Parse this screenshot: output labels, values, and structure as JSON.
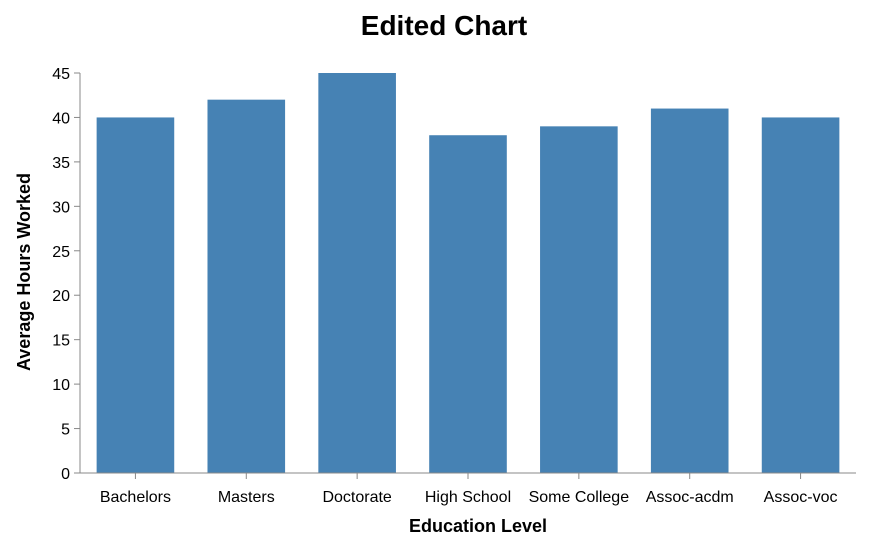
{
  "chart_data": {
    "type": "bar",
    "title": "Edited Chart",
    "xlabel": "Education Level",
    "ylabel": "Average Hours Worked",
    "categories": [
      "Bachelors",
      "Masters",
      "Doctorate",
      "High School",
      "Some College",
      "Assoc-acdm",
      "Assoc-voc"
    ],
    "values": [
      40,
      42,
      45,
      38,
      39,
      41,
      40
    ],
    "ylim": [
      0,
      45
    ],
    "yticks": [
      0,
      5,
      10,
      15,
      20,
      25,
      30,
      35,
      40,
      45
    ],
    "bar_color": "#4682b4",
    "axis_color": "#888888",
    "grid": false,
    "legend": "none"
  }
}
